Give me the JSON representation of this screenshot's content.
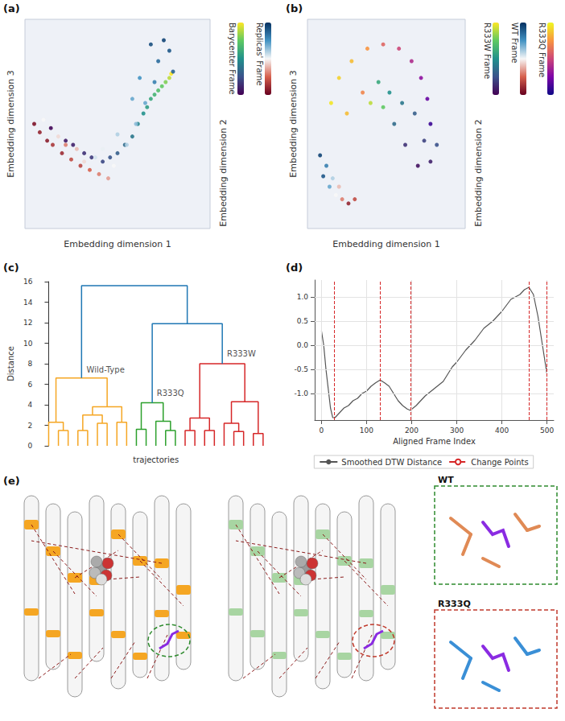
{
  "chart_data": [
    {
      "type": "scatter",
      "letter": "(a)",
      "tick_labels": false,
      "axis_labels": [
        "Embedding dimension 1",
        "Embedding dimension 2",
        "Embedding dimension 3"
      ],
      "xlim": [
        0,
        100
      ],
      "ylim": [
        0,
        100
      ],
      "series": [
        {
          "name": "Barycenter Frame",
          "colors": [
            "#440154",
            "#3b528b",
            "#21918c",
            "#5ec962",
            "#fde725"
          ],
          "colorbar_range": [
            0,
            1
          ],
          "x": [
            14,
            22,
            32,
            42,
            50,
            58,
            64,
            68,
            72,
            76,
            78,
            79,
            26,
            36,
            46,
            54,
            61,
            66,
            70,
            74
          ],
          "y": [
            48,
            42,
            36,
            32,
            36,
            44,
            55,
            62,
            66,
            70,
            72,
            74,
            40,
            34,
            34,
            40,
            50,
            58,
            64,
            68
          ],
          "frame": [
            0.02,
            0.08,
            0.15,
            0.22,
            0.3,
            0.4,
            0.5,
            0.6,
            0.7,
            0.8,
            0.9,
            1.0,
            0.1,
            0.18,
            0.26,
            0.35,
            0.45,
            0.55,
            0.65,
            0.75
          ]
        },
        {
          "name": "Replicas' Frame",
          "colors": [
            "#67001f",
            "#d6604d",
            "#f7f7f7",
            "#4393c3",
            "#053061"
          ],
          "colorbar_range": [
            0,
            1
          ],
          "x": [
            5,
            8,
            12,
            15,
            20,
            25,
            30,
            35,
            40,
            45,
            10,
            18,
            28,
            38,
            48,
            55,
            60,
            65,
            70,
            72,
            75,
            78,
            80,
            68,
            62,
            58,
            50,
            42,
            32,
            22
          ],
          "y": [
            50,
            46,
            42,
            40,
            36,
            33,
            30,
            28,
            26,
            24,
            52,
            44,
            38,
            34,
            30,
            40,
            50,
            60,
            70,
            80,
            90,
            85,
            75,
            88,
            72,
            62,
            45,
            38,
            32,
            40
          ],
          "frame": [
            0.05,
            0.1,
            0.08,
            0.15,
            0.12,
            0.2,
            0.18,
            0.25,
            0.3,
            0.35,
            0.5,
            0.45,
            0.4,
            0.55,
            0.5,
            0.6,
            0.65,
            0.7,
            0.8,
            0.85,
            0.95,
            0.9,
            0.88,
            0.92,
            0.75,
            0.7,
            0.6,
            0.52,
            0.45,
            0.3
          ]
        }
      ]
    },
    {
      "type": "scatter",
      "letter": "(b)",
      "tick_labels": false,
      "axis_labels": [
        "Embedding dimension 1",
        "Embedding dimension 2",
        "Embedding dimension 3"
      ],
      "xlim": [
        0,
        100
      ],
      "ylim": [
        0,
        100
      ],
      "series": [
        {
          "name": "R333W Frame",
          "colors": [
            "#440154",
            "#3b528b",
            "#21918c",
            "#5ec962",
            "#fde725"
          ],
          "colorbar_range": [
            0,
            1
          ],
          "x": [
            45,
            52,
            60,
            68,
            74,
            78,
            70,
            62,
            55,
            48,
            40,
            82
          ],
          "y": [
            70,
            65,
            60,
            55,
            42,
            32,
            30,
            40,
            50,
            58,
            60,
            40
          ],
          "frame": [
            0.6,
            0.5,
            0.4,
            0.3,
            0.2,
            0.1,
            0.05,
            0.15,
            0.35,
            0.75,
            0.9,
            0.25
          ]
        },
        {
          "name": "WT Frame",
          "colors": [
            "#67001f",
            "#d6604d",
            "#f7f7f7",
            "#4393c3",
            "#053061"
          ],
          "colorbar_range": [
            0,
            1
          ],
          "x": [
            10,
            14,
            18,
            22,
            26,
            12,
            16,
            20,
            30,
            8
          ],
          "y": [
            25,
            20,
            16,
            14,
            12,
            30,
            24,
            20,
            14,
            35
          ],
          "frame": [
            0.9,
            0.7,
            0.5,
            0.3,
            0.1,
            0.8,
            0.6,
            0.4,
            0.2,
            0.95
          ]
        },
        {
          "name": "R333Q Frame",
          "colors": [
            "#0d0887",
            "#7e03a8",
            "#cc4778",
            "#f89540",
            "#f0f921"
          ],
          "colorbar_range": [
            0,
            1
          ],
          "x": [
            15,
            20,
            28,
            38,
            48,
            58,
            66,
            72,
            76,
            78,
            25,
            35
          ],
          "y": [
            60,
            72,
            80,
            86,
            88,
            86,
            80,
            72,
            62,
            50,
            55,
            65
          ],
          "frame": [
            0.95,
            0.9,
            0.85,
            0.75,
            0.6,
            0.5,
            0.4,
            0.3,
            0.2,
            0.1,
            0.85,
            0.7
          ]
        }
      ]
    },
    {
      "type": "dendrogram",
      "letter": "(c)",
      "x_label": "trajectories",
      "y_label": "Distance",
      "xlim": [
        -1,
        23
      ],
      "ylim": [
        0,
        16
      ],
      "yticks": [
        0,
        2,
        4,
        6,
        8,
        10,
        12,
        14,
        16
      ],
      "tick_labels": "y",
      "links": [
        {
          "x": [
            1,
            1,
            2,
            2
          ],
          "y": [
            0,
            1.5,
            1.5,
            0
          ],
          "color": "#f5a623"
        },
        {
          "x": [
            0,
            0,
            1.5,
            1.5
          ],
          "y": [
            0,
            2.3,
            2.3,
            1.5
          ],
          "color": "#f5a623"
        },
        {
          "x": [
            3,
            3,
            4,
            4
          ],
          "y": [
            0,
            1.5,
            1.5,
            0
          ],
          "color": "#f5a623"
        },
        {
          "x": [
            5,
            5,
            6,
            6
          ],
          "y": [
            0,
            2.2,
            2.2,
            0
          ],
          "color": "#f5a623"
        },
        {
          "x": [
            3.5,
            3.5,
            5.5,
            5.5
          ],
          "y": [
            1.5,
            3.0,
            3.0,
            2.2
          ],
          "color": "#f5a623"
        },
        {
          "x": [
            7,
            7,
            8,
            8
          ],
          "y": [
            0,
            2.3,
            2.3,
            0
          ],
          "color": "#f5a623"
        },
        {
          "x": [
            4.5,
            4.5,
            7.5,
            7.5
          ],
          "y": [
            3.0,
            3.8,
            3.8,
            2.3
          ],
          "color": "#f5a623"
        },
        {
          "x": [
            0.75,
            0.75,
            6,
            6
          ],
          "y": [
            2.3,
            6.6,
            6.6,
            3.8
          ],
          "color": "#f5a623"
        },
        {
          "x": [
            9,
            9,
            10,
            10
          ],
          "y": [
            0,
            1.6,
            1.6,
            0
          ],
          "color": "#2ca02c"
        },
        {
          "x": [
            12,
            12,
            13,
            13
          ],
          "y": [
            0,
            1.5,
            1.5,
            0
          ],
          "color": "#2ca02c"
        },
        {
          "x": [
            11,
            11,
            12.5,
            12.5
          ],
          "y": [
            0,
            2.4,
            2.4,
            1.5
          ],
          "color": "#2ca02c"
        },
        {
          "x": [
            9.5,
            9.5,
            11.75,
            11.75
          ],
          "y": [
            1.6,
            4.2,
            4.2,
            2.4
          ],
          "color": "#2ca02c"
        },
        {
          "x": [
            14,
            14,
            15,
            15
          ],
          "y": [
            0,
            1.5,
            1.5,
            0
          ],
          "color": "#d62728"
        },
        {
          "x": [
            16,
            16,
            17,
            17
          ],
          "y": [
            0,
            1.5,
            1.5,
            0
          ],
          "color": "#d62728"
        },
        {
          "x": [
            14.5,
            14.5,
            16.5,
            16.5
          ],
          "y": [
            1.5,
            2.7,
            2.7,
            1.5
          ],
          "color": "#d62728"
        },
        {
          "x": [
            19,
            19,
            20,
            20
          ],
          "y": [
            0,
            1.4,
            1.4,
            0
          ],
          "color": "#d62728"
        },
        {
          "x": [
            18,
            18,
            19.5,
            19.5
          ],
          "y": [
            0,
            2.2,
            2.2,
            1.4
          ],
          "color": "#d62728"
        },
        {
          "x": [
            21,
            21,
            22,
            22
          ],
          "y": [
            0,
            1.2,
            1.2,
            0
          ],
          "color": "#d62728"
        },
        {
          "x": [
            18.75,
            18.75,
            21.5,
            21.5
          ],
          "y": [
            2.2,
            4.3,
            4.3,
            1.2
          ],
          "color": "#d62728"
        },
        {
          "x": [
            15.5,
            15.5,
            20.125,
            20.125
          ],
          "y": [
            2.7,
            8.0,
            8.0,
            4.3
          ],
          "color": "#d62728"
        },
        {
          "x": [
            10.625,
            10.625,
            17.8125,
            17.8125
          ],
          "y": [
            4.2,
            11.9,
            11.9,
            8.0
          ],
          "color": "#1f77b4"
        },
        {
          "x": [
            3.375,
            3.375,
            14.21875,
            14.21875
          ],
          "y": [
            6.6,
            15.6,
            15.6,
            11.9
          ],
          "color": "#1f77b4"
        }
      ],
      "annotations": [
        {
          "text": "Wild-Type",
          "x": 3.6,
          "y": 7.4
        },
        {
          "text": "R333Q",
          "x": 10.8,
          "y": 5.1
        },
        {
          "text": "R333W",
          "x": 18.0,
          "y": 9.0
        }
      ]
    },
    {
      "type": "line",
      "letter": "(d)",
      "x_label": "Aligned Frame Index",
      "grid": true,
      "legend": "bottom",
      "xlim": [
        -15,
        515
      ],
      "xticks": [
        0,
        100,
        200,
        300,
        400,
        500
      ],
      "ylim": [
        -1.55,
        1.35
      ],
      "yticks": [
        {
          "value": -1,
          "label": "-1.0"
        },
        -0.5,
        {
          "value": 0,
          "label": "0.0"
        },
        0.5,
        {
          "value": 1,
          "label": "1.0"
        }
      ],
      "series": [
        {
          "name": "Smoothed DTW Distance",
          "color": "#555555",
          "line_style": "solid",
          "x": [
            0,
            5,
            10,
            15,
            20,
            25,
            30,
            40,
            50,
            60,
            70,
            80,
            90,
            100,
            110,
            120,
            130,
            140,
            150,
            160,
            170,
            180,
            190,
            197,
            210,
            230,
            250,
            270,
            290,
            300,
            320,
            340,
            360,
            380,
            400,
            420,
            440,
            450,
            460,
            470,
            480,
            490,
            500
          ],
          "values": [
            0.3,
            0.0,
            -0.5,
            -0.9,
            -1.3,
            -1.5,
            -1.5,
            -1.4,
            -1.3,
            -1.25,
            -1.15,
            -1.1,
            -1.0,
            -0.95,
            -0.85,
            -0.78,
            -0.72,
            -0.78,
            -0.85,
            -1.0,
            -1.15,
            -1.25,
            -1.32,
            -1.35,
            -1.25,
            -1.05,
            -0.9,
            -0.75,
            -0.45,
            -0.35,
            -0.1,
            0.1,
            0.35,
            0.5,
            0.7,
            0.95,
            1.05,
            1.15,
            1.2,
            1.05,
            0.6,
            0.0,
            -0.6
          ]
        },
        {
          "name": "Change Points",
          "color": "#d62728",
          "line_style": "dashed",
          "x": [
            28,
            130,
            197,
            460,
            500
          ]
        }
      ]
    }
  ],
  "figure_e": {
    "letter": "(e)",
    "insets": [
      "WT",
      "R333Q"
    ]
  }
}
